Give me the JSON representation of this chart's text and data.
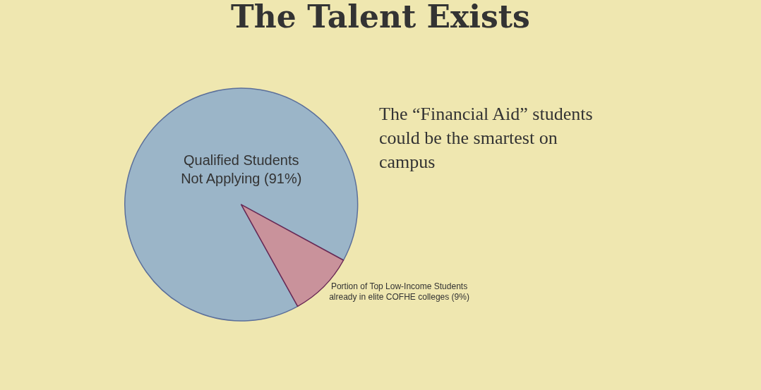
{
  "chart_data": {
    "type": "pie",
    "title": "The Talent Exists",
    "annotations": [
      "The “Financial Aid” students could be the smartest on campus"
    ],
    "categories": [
      "Qualified Students Not Applying (91%)",
      "Portion of Top Low-Income Students already in elite COFHE colleges (9%)"
    ],
    "values": [
      91,
      9
    ],
    "colors": [
      "#9bb5c8",
      "#c9929b"
    ],
    "legend": false
  }
}
